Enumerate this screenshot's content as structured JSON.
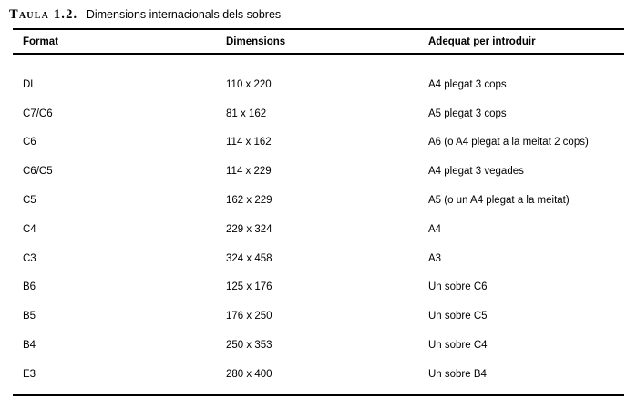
{
  "caption": {
    "label": "Taula 1.2.",
    "text": "Dimensions internacionals dels sobres"
  },
  "table": {
    "headers": [
      "Format",
      "Dimensions",
      "Adequat per introduir"
    ],
    "rows": [
      {
        "format": "DL",
        "dimensions": "110 x 220",
        "suitable": "A4 plegat 3 cops"
      },
      {
        "format": "C7/C6",
        "dimensions": "81 x 162",
        "suitable": "A5 plegat 3 cops"
      },
      {
        "format": "C6",
        "dimensions": "114 x 162",
        "suitable": "A6 (o A4 plegat a la meitat 2 cops)"
      },
      {
        "format": "C6/C5",
        "dimensions": "114 x 229",
        "suitable": "A4 plegat 3 vegades"
      },
      {
        "format": "C5",
        "dimensions": "162 x 229",
        "suitable": "A5 (o un A4 plegat a la meitat)"
      },
      {
        "format": "C4",
        "dimensions": "229 x 324",
        "suitable": "A4"
      },
      {
        "format": "C3",
        "dimensions": "324 x 458",
        "suitable": "A3"
      },
      {
        "format": "B6",
        "dimensions": "125 x 176",
        "suitable": "Un sobre C6"
      },
      {
        "format": "B5",
        "dimensions": "176 x 250",
        "suitable": "Un sobre C5"
      },
      {
        "format": "B4",
        "dimensions": "250 x 353",
        "suitable": "Un sobre C4"
      },
      {
        "format": "E3",
        "dimensions": "280 x 400",
        "suitable": "Un sobre B4"
      }
    ]
  },
  "colors": {
    "text": "#000000",
    "rule": "#000000",
    "background": "#ffffff"
  }
}
